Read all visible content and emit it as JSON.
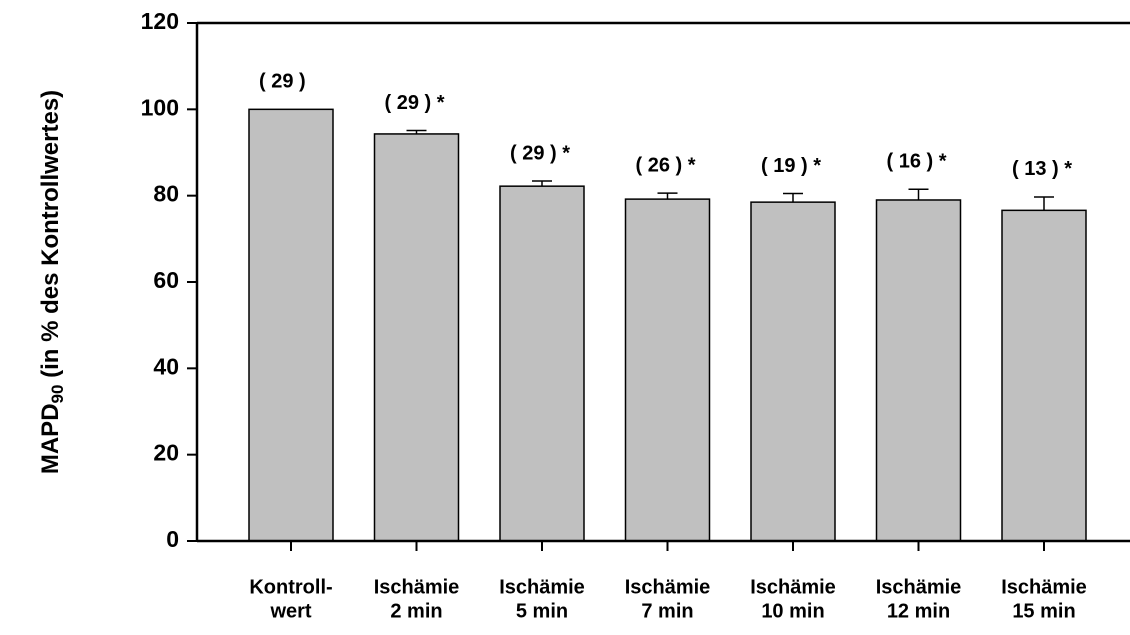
{
  "chart_data": {
    "type": "bar",
    "ylabel": {
      "main": "MAPD",
      "sub": "90",
      "rest": " (in % des Kontrollwertes)"
    },
    "categories": [
      [
        "Kontroll-",
        "wert"
      ],
      [
        "Ischämie",
        "2 min"
      ],
      [
        "Ischämie",
        "5 min"
      ],
      [
        "Ischämie",
        "7 min"
      ],
      [
        "Ischämie",
        "10 min"
      ],
      [
        "Ischämie",
        "12 min"
      ],
      [
        "Ischämie",
        "15 min"
      ]
    ],
    "values": [
      100,
      94.3,
      82.2,
      79.2,
      78.5,
      79,
      76.6
    ],
    "errors": [
      0,
      0.8,
      1.2,
      1.4,
      2.0,
      2.5,
      3.1
    ],
    "annotations": [
      "( 29 )",
      "( 29 ) *",
      "( 29 ) *",
      "( 26 ) *",
      "( 19 ) *",
      "( 16 ) *",
      "( 13 ) *"
    ],
    "color": "#c0c0c0",
    "ylim": [
      0,
      120
    ],
    "yticks": [
      0,
      20,
      40,
      60,
      80,
      100,
      120
    ]
  }
}
